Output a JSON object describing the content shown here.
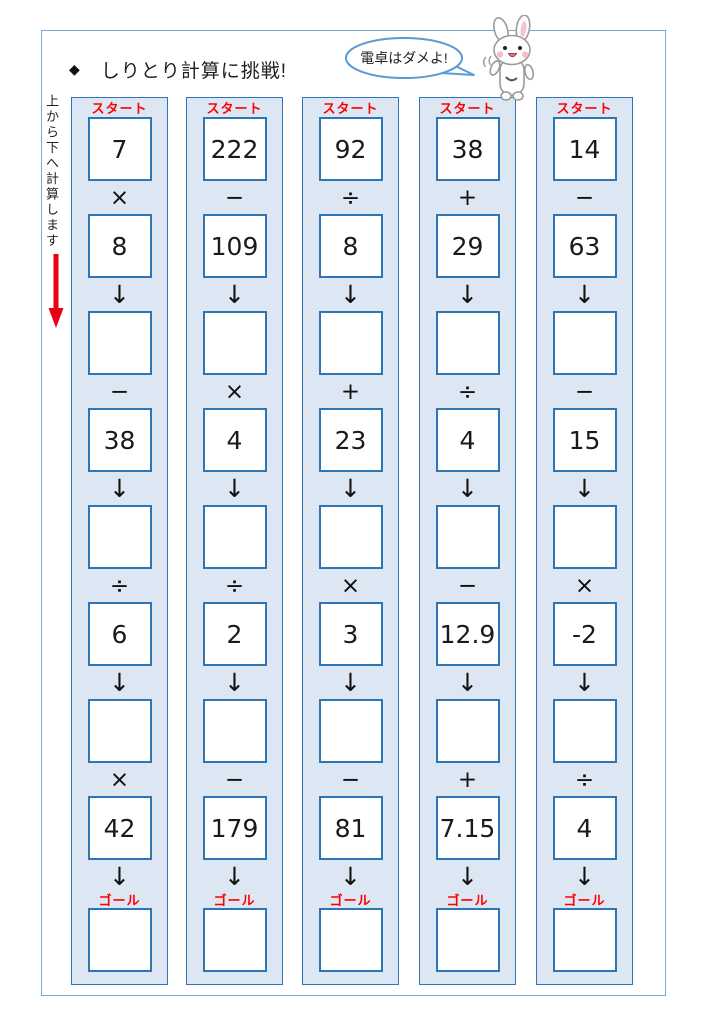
{
  "page": {
    "title_bullet": "◆",
    "title": "しりとり計算に挑戦!",
    "speech_bubble_text": "電卓はダメよ!",
    "vertical_instruction": "上から下へ計算します",
    "colors": {
      "panel_fill": "#dde7f4",
      "panel_border": "#2e75b6",
      "cell_border": "#2e75b6",
      "label_red": "#ff0000",
      "bubble_blue": "#5b9bd5",
      "sheet_border_blue": "#74a9dd",
      "arrow_red": "#e60012"
    }
  },
  "columns": [
    {
      "start_label": "スタート",
      "goal_label": "ゴール",
      "sequence": [
        {
          "kind": "num",
          "value": "7"
        },
        {
          "kind": "op",
          "symbol": "×"
        },
        {
          "kind": "num",
          "value": "8"
        },
        {
          "kind": "arrow",
          "symbol": "↓"
        },
        {
          "kind": "blank",
          "value": ""
        },
        {
          "kind": "op",
          "symbol": "−"
        },
        {
          "kind": "num",
          "value": "38"
        },
        {
          "kind": "arrow",
          "symbol": "↓"
        },
        {
          "kind": "blank",
          "value": ""
        },
        {
          "kind": "op",
          "symbol": "÷"
        },
        {
          "kind": "num",
          "value": "6"
        },
        {
          "kind": "arrow",
          "symbol": "↓"
        },
        {
          "kind": "blank",
          "value": ""
        },
        {
          "kind": "op",
          "symbol": "×"
        },
        {
          "kind": "num",
          "value": "42"
        },
        {
          "kind": "arrow",
          "symbol": "↓"
        },
        {
          "kind": "goal",
          "value": ""
        }
      ]
    },
    {
      "start_label": "スタート",
      "goal_label": "ゴール",
      "sequence": [
        {
          "kind": "num",
          "value": "222"
        },
        {
          "kind": "op",
          "symbol": "−"
        },
        {
          "kind": "num",
          "value": "109"
        },
        {
          "kind": "arrow",
          "symbol": "↓"
        },
        {
          "kind": "blank",
          "value": ""
        },
        {
          "kind": "op",
          "symbol": "×"
        },
        {
          "kind": "num",
          "value": "4"
        },
        {
          "kind": "arrow",
          "symbol": "↓"
        },
        {
          "kind": "blank",
          "value": ""
        },
        {
          "kind": "op",
          "symbol": "÷"
        },
        {
          "kind": "num",
          "value": "2"
        },
        {
          "kind": "arrow",
          "symbol": "↓"
        },
        {
          "kind": "blank",
          "value": ""
        },
        {
          "kind": "op",
          "symbol": "−"
        },
        {
          "kind": "num",
          "value": "179"
        },
        {
          "kind": "arrow",
          "symbol": "↓"
        },
        {
          "kind": "goal",
          "value": ""
        }
      ]
    },
    {
      "start_label": "スタート",
      "goal_label": "ゴール",
      "sequence": [
        {
          "kind": "num",
          "value": "92"
        },
        {
          "kind": "op",
          "symbol": "÷"
        },
        {
          "kind": "num",
          "value": "8"
        },
        {
          "kind": "arrow",
          "symbol": "↓"
        },
        {
          "kind": "blank",
          "value": ""
        },
        {
          "kind": "op",
          "symbol": "+"
        },
        {
          "kind": "num",
          "value": "23"
        },
        {
          "kind": "arrow",
          "symbol": "↓"
        },
        {
          "kind": "blank",
          "value": ""
        },
        {
          "kind": "op",
          "symbol": "×"
        },
        {
          "kind": "num",
          "value": "3"
        },
        {
          "kind": "arrow",
          "symbol": "↓"
        },
        {
          "kind": "blank",
          "value": ""
        },
        {
          "kind": "op",
          "symbol": "−"
        },
        {
          "kind": "num",
          "value": "81"
        },
        {
          "kind": "arrow",
          "symbol": "↓"
        },
        {
          "kind": "goal",
          "value": ""
        }
      ]
    },
    {
      "start_label": "スタート",
      "goal_label": "ゴール",
      "sequence": [
        {
          "kind": "num",
          "value": "38"
        },
        {
          "kind": "op",
          "symbol": "+"
        },
        {
          "kind": "num",
          "value": "29"
        },
        {
          "kind": "arrow",
          "symbol": "↓"
        },
        {
          "kind": "blank",
          "value": ""
        },
        {
          "kind": "op",
          "symbol": "÷"
        },
        {
          "kind": "num",
          "value": "4"
        },
        {
          "kind": "arrow",
          "symbol": "↓"
        },
        {
          "kind": "blank",
          "value": ""
        },
        {
          "kind": "op",
          "symbol": "−"
        },
        {
          "kind": "num",
          "value": "12.9"
        },
        {
          "kind": "arrow",
          "symbol": "↓"
        },
        {
          "kind": "blank",
          "value": ""
        },
        {
          "kind": "op",
          "symbol": "+"
        },
        {
          "kind": "num",
          "value": "7.15"
        },
        {
          "kind": "arrow",
          "symbol": "↓"
        },
        {
          "kind": "goal",
          "value": ""
        }
      ]
    },
    {
      "start_label": "スタート",
      "goal_label": "ゴール",
      "sequence": [
        {
          "kind": "num",
          "value": "14"
        },
        {
          "kind": "op",
          "symbol": "−"
        },
        {
          "kind": "num",
          "value": "63"
        },
        {
          "kind": "arrow",
          "symbol": "↓"
        },
        {
          "kind": "blank",
          "value": ""
        },
        {
          "kind": "op",
          "symbol": "−"
        },
        {
          "kind": "num",
          "value": "15"
        },
        {
          "kind": "arrow",
          "symbol": "↓"
        },
        {
          "kind": "blank",
          "value": ""
        },
        {
          "kind": "op",
          "symbol": "×"
        },
        {
          "kind": "num",
          "value": "-2"
        },
        {
          "kind": "arrow",
          "symbol": "↓"
        },
        {
          "kind": "blank",
          "value": ""
        },
        {
          "kind": "op",
          "symbol": "÷"
        },
        {
          "kind": "num",
          "value": "4"
        },
        {
          "kind": "arrow",
          "symbol": "↓"
        },
        {
          "kind": "goal",
          "value": ""
        }
      ]
    }
  ]
}
